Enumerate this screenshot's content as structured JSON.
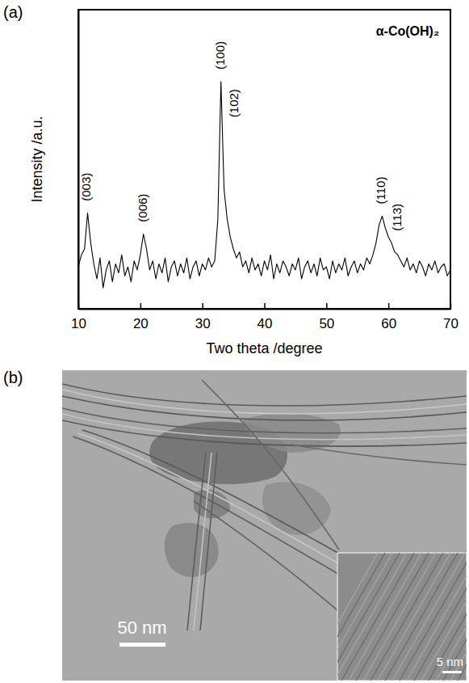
{
  "chart_data": {
    "type": "line",
    "title": "α-Co(OH)₂",
    "xlabel": "Two theta /degree",
    "ylabel": "Intensity /a.u.",
    "x": [
      10,
      10.5,
      11,
      11.5,
      12,
      12.5,
      13,
      13.5,
      14,
      14.5,
      15,
      15.5,
      16,
      16.5,
      17,
      17.5,
      18,
      18.5,
      19,
      19.5,
      20,
      20.5,
      21,
      21.5,
      22,
      22.5,
      23,
      23.5,
      24,
      24.5,
      25,
      25.5,
      26,
      26.5,
      27,
      27.5,
      28,
      28.5,
      29,
      29.5,
      30,
      30.5,
      31,
      31.5,
      32,
      32.5,
      33,
      33.5,
      34,
      34.5,
      35,
      35.5,
      36,
      36.5,
      37,
      37.5,
      38,
      38.5,
      39,
      39.5,
      40,
      40.5,
      41,
      41.5,
      42,
      42.5,
      43,
      43.5,
      44,
      44.5,
      45,
      45.5,
      46,
      46.5,
      47,
      47.5,
      48,
      48.5,
      49,
      49.5,
      50,
      50.5,
      51,
      51.5,
      52,
      52.5,
      53,
      53.5,
      54,
      54.5,
      55,
      55.5,
      56,
      56.5,
      57,
      57.5,
      58,
      58.5,
      59,
      59.5,
      60,
      60.5,
      61,
      61.5,
      62,
      62.5,
      63,
      63.5,
      64,
      64.5,
      65,
      65.5,
      66,
      66.5,
      67,
      67.5,
      68,
      68.5,
      69,
      69.5,
      70
    ],
    "values": [
      14,
      18,
      20,
      32,
      22,
      15,
      10,
      17,
      7,
      13,
      16,
      9,
      15,
      12,
      18,
      11,
      14,
      9,
      16,
      13,
      18,
      25,
      20,
      13,
      16,
      10,
      15,
      12,
      17,
      9,
      14,
      16,
      11,
      15,
      12,
      17,
      10,
      14,
      16,
      11,
      15,
      13,
      17,
      14,
      16,
      30,
      76,
      40,
      30,
      24,
      20,
      17,
      19,
      14,
      16,
      12,
      17,
      13,
      15,
      11,
      16,
      13,
      18,
      10,
      15,
      12,
      16,
      14,
      11,
      15,
      13,
      17,
      10,
      14,
      16,
      12,
      15,
      11,
      17,
      13,
      14,
      10,
      16,
      12,
      15,
      13,
      17,
      11,
      14,
      16,
      12,
      15,
      13,
      17,
      15,
      18,
      22,
      28,
      31,
      27,
      24,
      22,
      19,
      18,
      16,
      14,
      17,
      13,
      15,
      12,
      16,
      14,
      11,
      15,
      13,
      16,
      12,
      14,
      15,
      11,
      13
    ],
    "color": "#000000",
    "xlim": [
      10,
      70
    ],
    "xticks": [
      10,
      20,
      30,
      40,
      50,
      60,
      70
    ],
    "ylim": [
      0,
      100
    ],
    "tick_labels": "x",
    "annotations": [
      {
        "text": "(003)",
        "x": 11.5,
        "y": 36
      },
      {
        "text": "(006)",
        "x": 20.5,
        "y": 29
      },
      {
        "text": "(100)",
        "x": 33,
        "y": 80
      },
      {
        "text": "(102)",
        "x": 35.2,
        "y": 64
      },
      {
        "text": "(110)",
        "x": 59,
        "y": 35
      },
      {
        "text": "(113)",
        "x": 61.5,
        "y": 26
      }
    ]
  },
  "figure": {
    "panel_labels": [
      "(a)",
      "(b)"
    ],
    "micrograph": {
      "scale_bar": "50 nm",
      "inset_scale_bar": "5 nm"
    }
  }
}
